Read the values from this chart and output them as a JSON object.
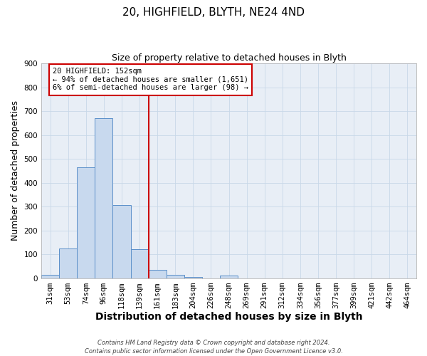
{
  "title_line1": "20, HIGHFIELD, BLYTH, NE24 4ND",
  "title_line2": "Size of property relative to detached houses in Blyth",
  "xlabel": "Distribution of detached houses by size in Blyth",
  "ylabel": "Number of detached properties",
  "bar_labels": [
    "31sqm",
    "53sqm",
    "74sqm",
    "96sqm",
    "118sqm",
    "139sqm",
    "161sqm",
    "183sqm",
    "204sqm",
    "226sqm",
    "248sqm",
    "269sqm",
    "291sqm",
    "312sqm",
    "334sqm",
    "356sqm",
    "377sqm",
    "399sqm",
    "421sqm",
    "442sqm",
    "464sqm"
  ],
  "bar_values": [
    15,
    125,
    465,
    670,
    305,
    120,
    35,
    15,
    5,
    0,
    10,
    0,
    0,
    0,
    0,
    0,
    0,
    0,
    0,
    0,
    0
  ],
  "bar_color": "#c8d9ee",
  "bar_edge_color": "#5b8fc9",
  "grid_color": "#c8d8e8",
  "background_color": "#e8eef6",
  "vline_x_index": 6,
  "vline_color": "#cc0000",
  "annotation_line1": "20 HIGHFIELD: 152sqm",
  "annotation_line2": "← 94% of detached houses are smaller (1,651)",
  "annotation_line3": "6% of semi-detached houses are larger (98) →",
  "annotation_box_color": "#cc0000",
  "ylim": [
    0,
    900
  ],
  "yticks": [
    0,
    100,
    200,
    300,
    400,
    500,
    600,
    700,
    800,
    900
  ],
  "footer_line1": "Contains HM Land Registry data © Crown copyright and database right 2024.",
  "footer_line2": "Contains public sector information licensed under the Open Government Licence v3.0.",
  "title_fontsize": 11,
  "subtitle_fontsize": 9,
  "axis_label_fontsize": 9,
  "tick_fontsize": 7.5,
  "footer_fontsize": 6
}
